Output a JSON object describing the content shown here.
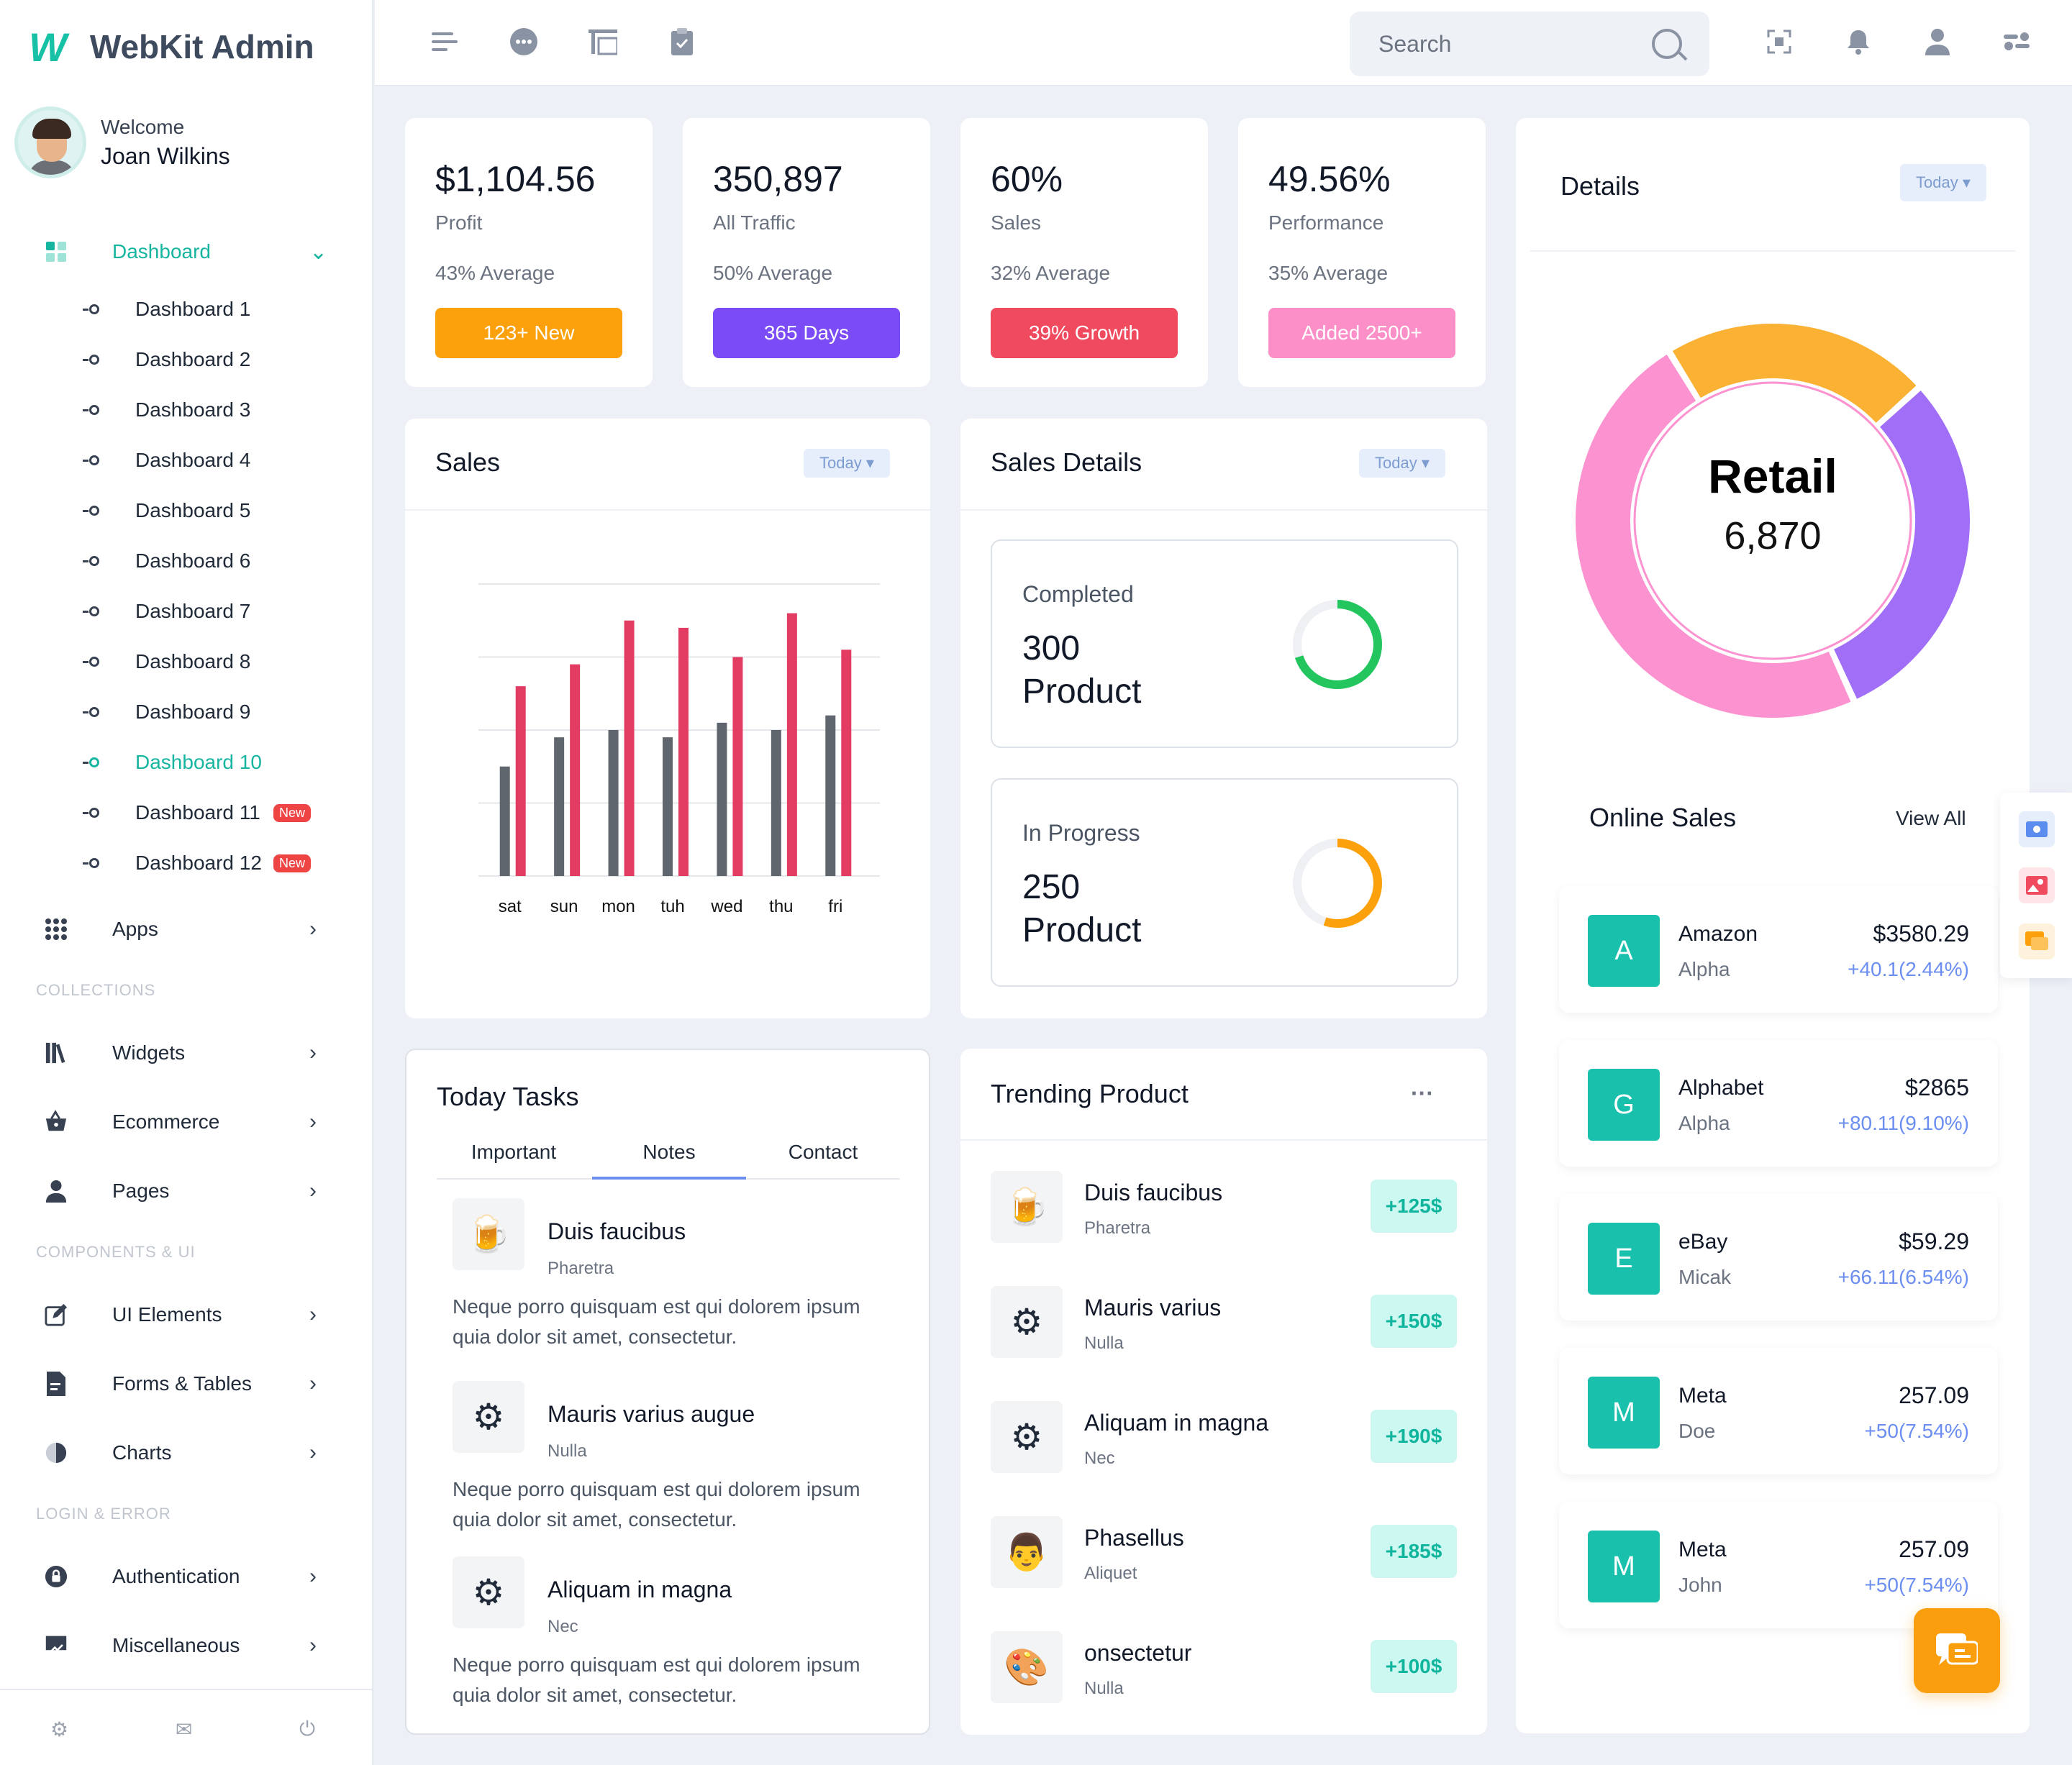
{
  "brand": {
    "logo": "W",
    "name": "WebKit Admin"
  },
  "profile": {
    "greeting": "Welcome",
    "name": "Joan Wilkins"
  },
  "sidebar": {
    "dashboard": {
      "label": "Dashboard",
      "icon": "grid-icon"
    },
    "sub_items": [
      {
        "label": "Dashboard 1"
      },
      {
        "label": "Dashboard 2"
      },
      {
        "label": "Dashboard 3"
      },
      {
        "label": "Dashboard 4"
      },
      {
        "label": "Dashboard 5"
      },
      {
        "label": "Dashboard 6"
      },
      {
        "label": "Dashboard 7"
      },
      {
        "label": "Dashboard 8"
      },
      {
        "label": "Dashboard 9"
      },
      {
        "label": "Dashboard 10"
      },
      {
        "label": "Dashboard 11",
        "badge": "New"
      },
      {
        "label": "Dashboard 12",
        "badge": "New"
      }
    ],
    "apps": "Apps",
    "section_collections": "COLLECTIONS",
    "widgets": "Widgets",
    "ecommerce": "Ecommerce",
    "pages": "Pages",
    "section_components": "COMPONENTS & UI",
    "ui_elements": "UI Elements",
    "forms_tables": "Forms & Tables",
    "charts": "Charts",
    "section_login": "LOGIN & ERROR",
    "authentication": "Authentication",
    "miscellaneous": "Miscellaneous"
  },
  "topbar": {
    "search_placeholder": "Search"
  },
  "stats": [
    {
      "value": "$1,104.56",
      "label": "Profit",
      "avg": "43% Average",
      "button": "123+ New",
      "color": "#fca10c"
    },
    {
      "value": "350,897",
      "label": "All Traffic",
      "avg": "50% Average",
      "button": "365 Days",
      "color": "#7b4cf5"
    },
    {
      "value": "60%",
      "label": "Sales",
      "avg": "32% Average",
      "button": "39% Growth",
      "color": "#f04a5e"
    },
    {
      "value": "49.56%",
      "label": "Performance",
      "avg": "35% Average",
      "button": "Added 2500+",
      "color": "#fc8fc8"
    }
  ],
  "sales": {
    "title": "Sales",
    "filter": "Today"
  },
  "chart_data": {
    "type": "bar",
    "categories": [
      "sat",
      "sun",
      "mon",
      "tuh",
      "wed",
      "thu",
      "fri"
    ],
    "series": [
      {
        "values": [
          15,
          19,
          20,
          19,
          21,
          20,
          22
        ],
        "color": "#5f666d"
      },
      {
        "values": [
          26,
          29,
          35,
          34,
          30,
          36,
          31
        ],
        "color": "#e23c63"
      }
    ],
    "ylim": [
      0,
      40
    ],
    "grid": true
  },
  "sales_details": {
    "title": "Sales Details",
    "filter": "Today",
    "boxes": [
      {
        "label": "Completed",
        "value": "300",
        "unit": "Product",
        "progress": 0.7,
        "color": "#22c55e"
      },
      {
        "label": "In Progress",
        "value": "250",
        "unit": "Product",
        "progress": 0.55,
        "color": "#fca10c"
      }
    ]
  },
  "details": {
    "title": "Details",
    "filter": "Today",
    "donut_label": "Retail",
    "donut_value": "6,870",
    "segments": [
      {
        "value": 22,
        "color": "#fbb133"
      },
      {
        "value": 30,
        "color": "#a16ef7"
      },
      {
        "value": 48,
        "color": "#fc92cf"
      }
    ]
  },
  "online_sales": {
    "title": "Online Sales",
    "view_all": "View All",
    "items": [
      {
        "letter": "A",
        "name": "Amazon",
        "sub": "Alpha",
        "price": "$3580.29",
        "change": "+40.1(2.44%)"
      },
      {
        "letter": "G",
        "name": "Alphabet",
        "sub": "Alpha",
        "price": "$2865",
        "change": "+80.11(9.10%)"
      },
      {
        "letter": "E",
        "name": "eBay",
        "sub": "Micak",
        "price": "$59.29",
        "change": "+66.11(6.54%)"
      },
      {
        "letter": "M",
        "name": "Meta",
        "sub": "Doe",
        "price": "257.09",
        "change": "+50(7.54%)"
      },
      {
        "letter": "M",
        "name": "Meta",
        "sub": "John",
        "price": "257.09",
        "change": "+50(7.54%)"
      }
    ]
  },
  "tasks": {
    "title": "Today Tasks",
    "tabs": [
      "Important",
      "Notes",
      "Contact"
    ],
    "items": [
      {
        "title": "Duis faucibus",
        "sub": "Pharetra",
        "body": "Neque porro quisquam est qui dolorem ipsum quia dolor sit amet, consectetur.",
        "icon": "beer-icon",
        "glyph": "🍺"
      },
      {
        "title": "Mauris varius augue",
        "sub": "Nulla",
        "body": "Neque porro quisquam est qui dolorem ipsum quia dolor sit amet, consectetur.",
        "icon": "gear-bulb-icon",
        "glyph": "⚙"
      },
      {
        "title": "Aliquam in magna",
        "sub": "Nec",
        "body": "Neque porro quisquam est qui dolorem ipsum quia dolor sit amet, consectetur.",
        "icon": "gear-check-icon",
        "glyph": "⚙"
      }
    ]
  },
  "trending": {
    "title": "Trending Product",
    "more": "···",
    "items": [
      {
        "title": "Duis faucibus",
        "sub": "Pharetra",
        "badge": "+125$",
        "icon": "beer-icon",
        "glyph": "🍺"
      },
      {
        "title": "Mauris varius",
        "sub": "Nulla",
        "badge": "+150$",
        "icon": "gear-bulb-icon",
        "glyph": "⚙"
      },
      {
        "title": "Aliquam in magna",
        "sub": "Nec",
        "badge": "+190$",
        "icon": "gear-check-icon",
        "glyph": "⚙"
      },
      {
        "title": "Phasellus",
        "sub": "Aliquet",
        "badge": "+185$",
        "icon": "person-icon",
        "glyph": "👨"
      },
      {
        "title": "onsectetur",
        "sub": "Nulla",
        "badge": "+100$",
        "icon": "palette-icon",
        "glyph": "🎨"
      }
    ]
  }
}
